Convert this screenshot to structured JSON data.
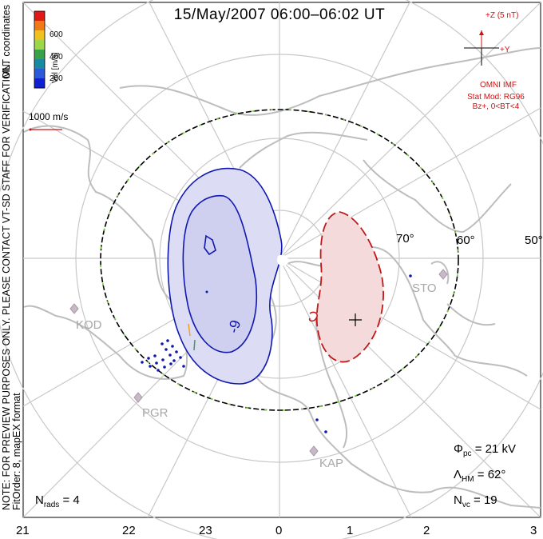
{
  "title": "15/May/2007 06:00–06:02 UT",
  "side_note": [
    "NOTE: FOR PREVIEW PURPOSES ONLY. PLEASE CONTACT VT-SD STAFF FOR VERIFICATION.",
    "FitOrder: 8, mapEX format"
  ],
  "mlt_label": "MLT coordinates",
  "color_scale": {
    "unit": "Vel [m/s]",
    "ticks": [
      "600",
      "400",
      "200"
    ],
    "colors": [
      "#e01818",
      "#f07818",
      "#f0c020",
      "#9ad84a",
      "#3aa04a",
      "#1a8aa0",
      "#2a5ad8",
      "#1020d0"
    ]
  },
  "vector_scale_label": "1000 m/s",
  "imf": {
    "z_label": "+Z (5 nT)",
    "y_label": "+Y",
    "source": "OMNI IMF",
    "model": "Stat Mod: RG96",
    "condition": "Bz+, 0<BT<4",
    "color": "#d01010"
  },
  "latitude_labels": [
    "70°",
    "60°",
    "50°"
  ],
  "stations": [
    "STO",
    "KOD",
    "PGR",
    "KAP"
  ],
  "stats": {
    "nrads_label": "N",
    "nrads_sub": "rads",
    "nrads_value": "= 4",
    "phi_label": "Φ",
    "phi_sub": "pc",
    "phi_value": "= 21 kV",
    "lambda_label": "Λ",
    "lambda_sub": "HM",
    "lambda_value": "= 62°",
    "nvc_label": "N",
    "nvc_sub": "vc",
    "nvc_value": "= 19"
  },
  "contour_label": "-9",
  "mlt_ticks": [
    "21",
    "22",
    "23",
    "0",
    "1",
    "2",
    "3"
  ],
  "cell_colors": {
    "negative_fill": "#dcdcf4",
    "negative_line": "#1018b0",
    "positive_fill": "#f4dada",
    "positive_line": "#c01818",
    "hmb": "#7ac840",
    "coast": "#bdbdbd",
    "grid": "#c8c8c8"
  }
}
